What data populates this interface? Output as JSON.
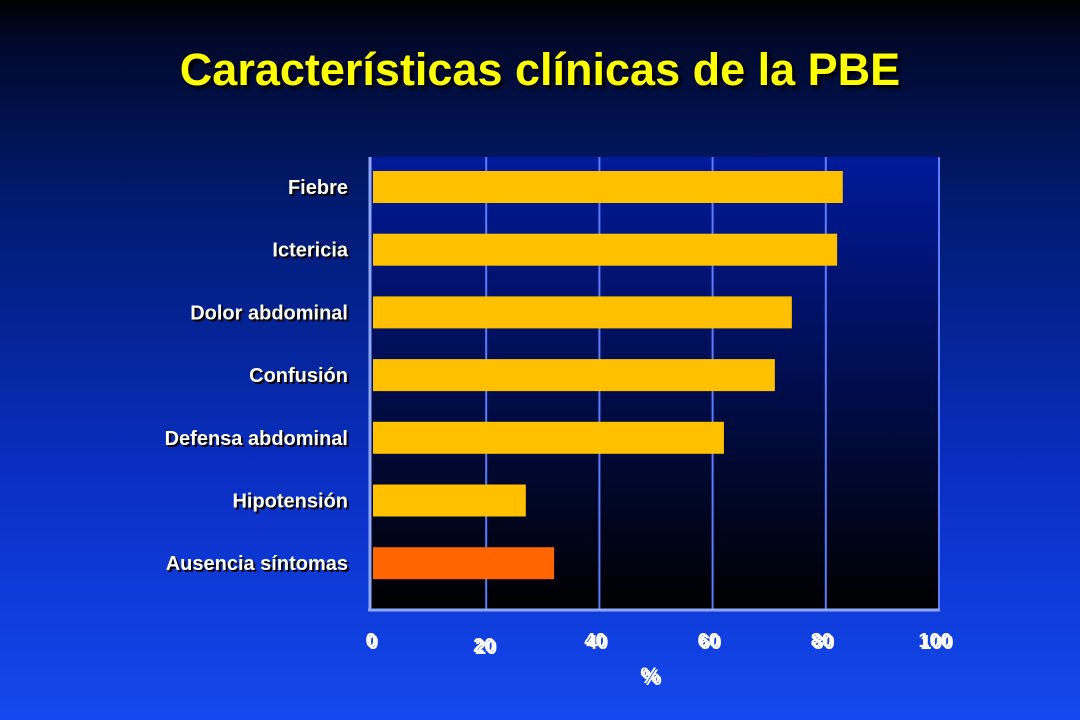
{
  "title": "Características clínicas de la PBE",
  "colors": {
    "bar": "#ffc000",
    "bar_highlight": "#ff6600",
    "title": "#ffff00",
    "plot_bg_top": "#001a9a",
    "plot_bg_bottom": "#000000",
    "grid": "#5a7cff"
  },
  "chart_data": {
    "type": "bar",
    "orientation": "horizontal",
    "title": "Características clínicas de la PBE",
    "xlabel": "%",
    "ylabel": "",
    "xlim": [
      0,
      100
    ],
    "xticks": [
      "0",
      "20",
      "40",
      "60",
      "80",
      "100"
    ],
    "tick_values": [
      0,
      20,
      40,
      60,
      80,
      100
    ],
    "grid": true,
    "categories": [
      "Fiebre",
      "Ictericia",
      "Dolor abdominal",
      "Confusión",
      "Defensa abdominal",
      "Hipotensión",
      "Ausencia síntomas"
    ],
    "values": [
      83,
      82,
      74,
      71,
      62,
      27,
      32
    ],
    "highlight": [
      "Ausencia síntomas"
    ]
  }
}
